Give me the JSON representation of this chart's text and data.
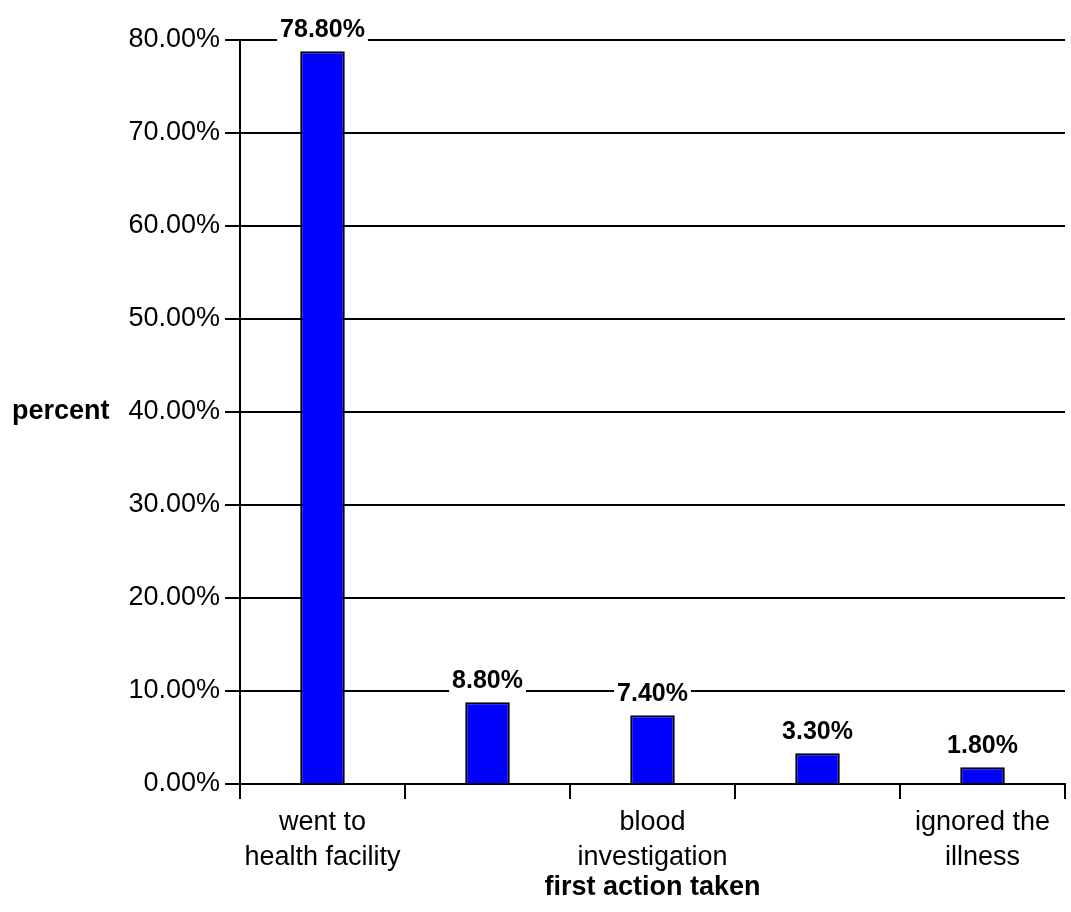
{
  "chart_data": {
    "type": "bar",
    "xlabel": "first action taken",
    "ylabel": "percent",
    "categories": [
      "went to health facility",
      null,
      "blood investigation",
      null,
      "ignored the illness"
    ],
    "values": [
      78.8,
      8.8,
      7.4,
      3.3,
      1.8
    ],
    "value_labels": [
      "78.80%",
      "8.80%",
      "7.40%",
      "3.30%",
      "1.80%"
    ],
    "color": "#0000ff",
    "ylim": [
      0,
      80
    ],
    "yticks": [
      {
        "value": 0,
        "label": "0.00%"
      },
      {
        "value": 10,
        "label": "10.00%"
      },
      {
        "value": 20,
        "label": "20.00%"
      },
      {
        "value": 30,
        "label": "30.00%"
      },
      {
        "value": 40,
        "label": "40.00%"
      },
      {
        "value": 50,
        "label": "50.00%"
      },
      {
        "value": 60,
        "label": "60.00%"
      },
      {
        "value": 70,
        "label": "70.00%"
      },
      {
        "value": 80,
        "label": "80.00%"
      }
    ],
    "grid": "y"
  }
}
